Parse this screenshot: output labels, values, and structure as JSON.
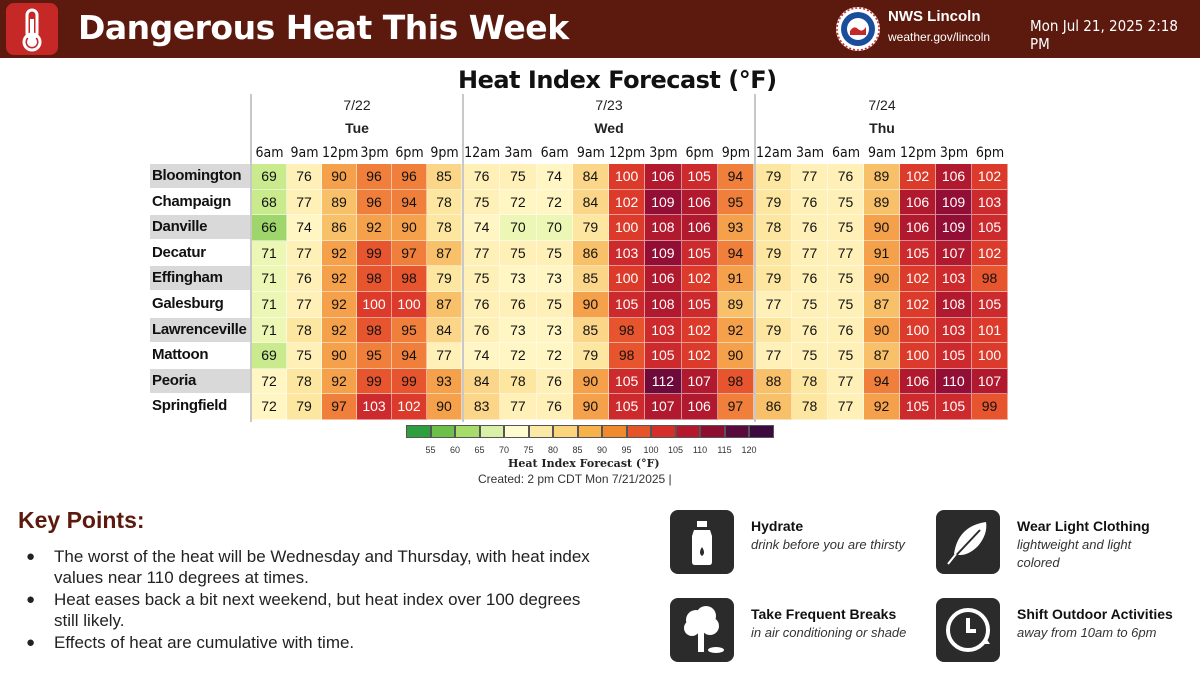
{
  "header": {
    "title": "Dangerous Heat This Week",
    "org_name": "NWS Lincoln",
    "org_url": "weather.gov/lincoln",
    "timestamp": "Mon Jul 21, 2025 2:18 PM",
    "icon": "thermometer-icon",
    "colors": {
      "bar": "#5c1a0e",
      "icon_bg": "#c62828"
    }
  },
  "chart_data": {
    "type": "heatmap",
    "title": "Heat Index Forecast (°F)",
    "days": [
      {
        "date": "7/22",
        "day": "Tue",
        "times": [
          "6am",
          "9am",
          "12pm",
          "3pm",
          "6pm",
          "9pm"
        ]
      },
      {
        "date": "7/23",
        "day": "Wed",
        "times": [
          "12am",
          "3am",
          "6am",
          "9am",
          "12pm",
          "3pm",
          "6pm",
          "9pm"
        ]
      },
      {
        "date": "7/24",
        "day": "Thu",
        "times": [
          "12am",
          "3am",
          "6am",
          "9am",
          "12pm",
          "3pm",
          "6pm"
        ]
      }
    ],
    "rows": [
      {
        "city": "Bloomington",
        "values": [
          69,
          76,
          90,
          96,
          96,
          85,
          76,
          75,
          74,
          84,
          100,
          106,
          105,
          94,
          79,
          77,
          76,
          89,
          102,
          106,
          102
        ]
      },
      {
        "city": "Champaign",
        "values": [
          68,
          77,
          89,
          96,
          94,
          78,
          75,
          72,
          72,
          84,
          102,
          109,
          106,
          95,
          79,
          76,
          75,
          89,
          106,
          109,
          103
        ]
      },
      {
        "city": "Danville",
        "values": [
          66,
          74,
          86,
          92,
          90,
          78,
          74,
          70,
          70,
          79,
          100,
          108,
          106,
          93,
          78,
          76,
          75,
          90,
          106,
          109,
          105
        ]
      },
      {
        "city": "Decatur",
        "values": [
          71,
          77,
          92,
          99,
          97,
          87,
          77,
          75,
          75,
          86,
          103,
          109,
          105,
          94,
          79,
          77,
          77,
          91,
          105,
          107,
          102
        ]
      },
      {
        "city": "Effingham",
        "values": [
          71,
          76,
          92,
          98,
          98,
          79,
          75,
          73,
          73,
          85,
          100,
          106,
          102,
          91,
          79,
          76,
          75,
          90,
          102,
          103,
          98
        ]
      },
      {
        "city": "Galesburg",
        "values": [
          71,
          77,
          92,
          100,
          100,
          87,
          76,
          76,
          75,
          90,
          105,
          108,
          105,
          89,
          77,
          75,
          75,
          87,
          102,
          108,
          105
        ]
      },
      {
        "city": "Lawrenceville",
        "values": [
          71,
          78,
          92,
          98,
          95,
          84,
          76,
          73,
          73,
          85,
          98,
          103,
          102,
          92,
          79,
          76,
          76,
          90,
          100,
          103,
          101
        ]
      },
      {
        "city": "Mattoon",
        "values": [
          69,
          75,
          90,
          95,
          94,
          77,
          74,
          72,
          72,
          79,
          98,
          105,
          102,
          90,
          77,
          75,
          75,
          87,
          100,
          105,
          100
        ]
      },
      {
        "city": "Peoria",
        "values": [
          72,
          78,
          92,
          99,
          99,
          93,
          84,
          78,
          76,
          90,
          105,
          112,
          107,
          98,
          88,
          78,
          77,
          94,
          106,
          110,
          107
        ]
      },
      {
        "city": "Springfield",
        "values": [
          72,
          79,
          97,
          103,
          102,
          90,
          83,
          77,
          76,
          90,
          105,
          107,
          106,
          97,
          86,
          78,
          77,
          92,
          105,
          105,
          99
        ]
      }
    ],
    "legend": {
      "title": "Heat Index Forecast (°F)",
      "ticks": [
        "55",
        "60",
        "65",
        "70",
        "75",
        "80",
        "85",
        "90",
        "95",
        "100",
        "105",
        "110",
        "115",
        "120"
      ],
      "colors": [
        "#2e9e3e",
        "#6cc04a",
        "#a8dc6a",
        "#d8f0a8",
        "#fffbd0",
        "#fde9a6",
        "#fbd47e",
        "#f8b24c",
        "#f08a2c",
        "#e6552a",
        "#d62f2a",
        "#b5182c",
        "#8c0f32",
        "#5a0a3c",
        "#3d0a40"
      ]
    },
    "created": "Created: 2 pm CDT Mon 7/21/2025  |"
  },
  "key_points": {
    "title": "Key Points:",
    "items": [
      "The worst of the heat will be Wednesday and Thursday, with heat index values near 110 degrees at times.",
      "Heat eases back a bit next weekend, but heat index over 100 degrees still likely.",
      "Effects of heat are cumulative with time."
    ]
  },
  "tips": [
    {
      "icon": "water-bottle-icon",
      "title": "Hydrate",
      "desc": "drink before you are thirsty"
    },
    {
      "icon": "feather-icon",
      "title": "Wear Light Clothing",
      "desc": "lightweight and light colored"
    },
    {
      "icon": "shade-tree-icon",
      "title": "Take Frequent Breaks",
      "desc": "in air conditioning or shade"
    },
    {
      "icon": "clock-icon",
      "title": "Shift Outdoor Activities",
      "desc": "away from 10am to 6pm"
    }
  ]
}
